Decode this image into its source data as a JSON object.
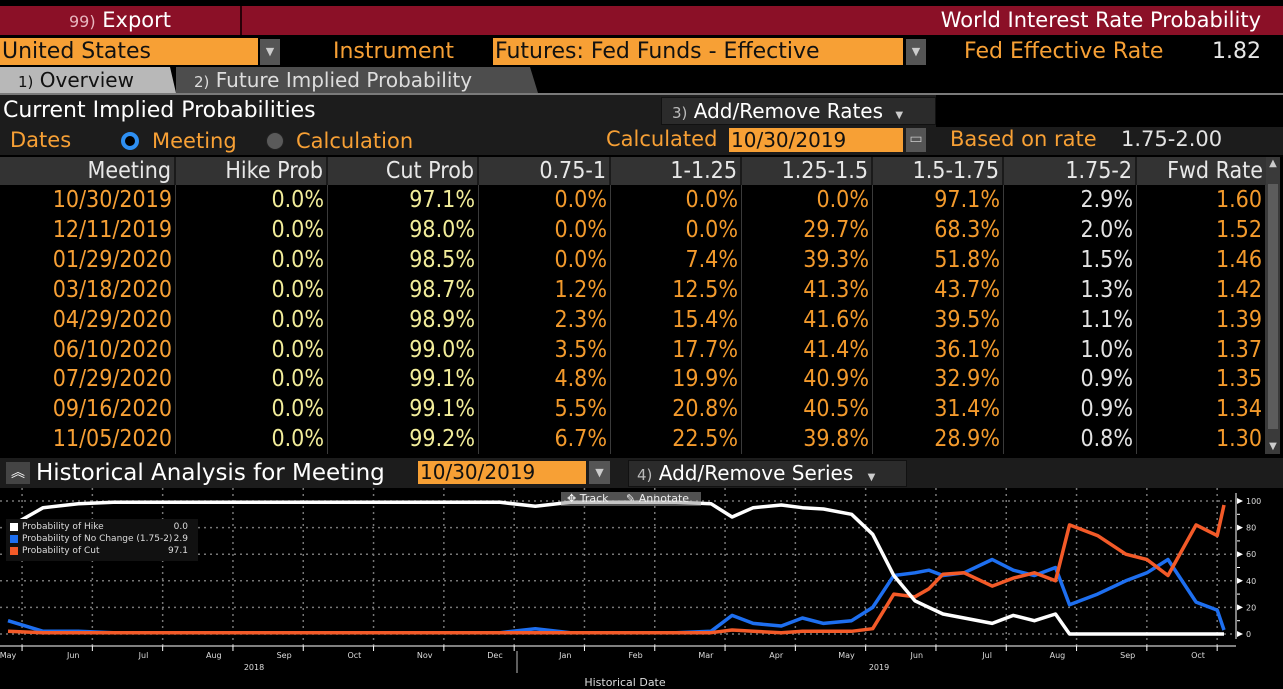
{
  "header": {
    "export_num": "99)",
    "export_label": "Export",
    "app_title": "World Interest Rate Probability"
  },
  "controls": {
    "country": "United States",
    "instrument_label": "Instrument",
    "instrument": "Futures: Fed Funds - Effective",
    "fed_rate_label": "Fed Effective Rate",
    "fed_rate_value": "1.82"
  },
  "tabs": [
    {
      "num": "1)",
      "label": "Overview"
    },
    {
      "num": "2)",
      "label": "Future Implied Probability"
    }
  ],
  "current": {
    "title": "Current Implied Probabilities",
    "add_rates_num": "3)",
    "add_rates_label": "Add/Remove Rates",
    "dates_label": "Dates",
    "radio_meeting": "Meeting",
    "radio_calculation": "Calculation",
    "calculated_label": "Calculated",
    "calculated_date": "10/30/2019",
    "based_on_label": "Based on rate",
    "based_on_value": "1.75-2.00"
  },
  "table": {
    "columns": [
      "Meeting",
      "Hike Prob",
      "Cut Prob",
      "0.75-1",
      "1-1.25",
      "1.25-1.5",
      "1.5-1.75",
      "1.75-2",
      "Fwd Rate"
    ],
    "rows": [
      [
        "10/30/2019",
        "0.0%",
        "97.1%",
        "0.0%",
        "0.0%",
        "0.0%",
        "97.1%",
        "2.9%",
        "1.60"
      ],
      [
        "12/11/2019",
        "0.0%",
        "98.0%",
        "0.0%",
        "0.0%",
        "29.7%",
        "68.3%",
        "2.0%",
        "1.52"
      ],
      [
        "01/29/2020",
        "0.0%",
        "98.5%",
        "0.0%",
        "7.4%",
        "39.3%",
        "51.8%",
        "1.5%",
        "1.46"
      ],
      [
        "03/18/2020",
        "0.0%",
        "98.7%",
        "1.2%",
        "12.5%",
        "41.3%",
        "43.7%",
        "1.3%",
        "1.42"
      ],
      [
        "04/29/2020",
        "0.0%",
        "98.9%",
        "2.3%",
        "15.4%",
        "41.6%",
        "39.5%",
        "1.1%",
        "1.39"
      ],
      [
        "06/10/2020",
        "0.0%",
        "99.0%",
        "3.5%",
        "17.7%",
        "41.4%",
        "36.1%",
        "1.0%",
        "1.37"
      ],
      [
        "07/29/2020",
        "0.0%",
        "99.1%",
        "4.8%",
        "19.9%",
        "40.9%",
        "32.9%",
        "0.9%",
        "1.35"
      ],
      [
        "09/16/2020",
        "0.0%",
        "99.1%",
        "5.5%",
        "20.8%",
        "40.5%",
        "31.4%",
        "0.9%",
        "1.34"
      ],
      [
        "11/05/2020",
        "0.0%",
        "99.2%",
        "6.7%",
        "22.5%",
        "39.8%",
        "28.9%",
        "0.8%",
        "1.30"
      ]
    ]
  },
  "historical": {
    "title": "Historical Analysis for Meeting",
    "meeting_date": "10/30/2019",
    "add_series_num": "4)",
    "add_series_label": "Add/Remove Series",
    "track_label": "Track",
    "annotate_label": "Annotate"
  },
  "chart_data": {
    "type": "line",
    "xlabel": "Historical Date",
    "ylabel": "",
    "ylim": [
      0,
      100
    ],
    "yticks": [
      "100",
      "80",
      "60",
      "40",
      "20",
      "0"
    ],
    "xticks": [
      "May",
      "Jun",
      "Jul",
      "Aug",
      "Sep",
      "Oct",
      "Nov",
      "Dec",
      "Jan",
      "Feb",
      "Mar",
      "Apr",
      "May",
      "Jun",
      "Jul",
      "Aug",
      "Sep",
      "Oct"
    ],
    "year_labels": [
      "2018",
      "2019"
    ],
    "legend": [
      {
        "name": "Probability of Hike",
        "value": "0.0",
        "color": "#ffffff"
      },
      {
        "name": "Probability of No Change (1.75-2)",
        "value": "2.9",
        "color": "#1e6ff0"
      },
      {
        "name": "Probability of Cut",
        "value": "97.1",
        "color": "#f35a28"
      }
    ],
    "x_months_index": [
      0,
      0.5,
      1,
      1.5,
      2,
      2.5,
      3,
      4,
      5,
      6,
      7,
      7.5,
      8,
      9,
      9.5,
      10,
      10.3,
      10.6,
      11,
      11.3,
      11.6,
      12,
      12.3,
      12.6,
      12.9,
      13.1,
      13.3,
      13.6,
      14,
      14.3,
      14.6,
      14.9,
      15.1,
      15.5,
      15.9,
      16.2,
      16.5,
      16.9,
      17.2,
      17.5
    ],
    "series": [
      {
        "name": "Probability of Hike",
        "values": [
          80,
          95,
          98,
          99,
          99,
          99,
          99,
          99,
          99,
          99,
          99,
          96,
          99,
          99,
          99,
          98,
          88,
          95,
          97,
          95,
          94,
          90,
          75,
          44,
          25,
          20,
          15,
          12,
          8,
          14,
          10,
          15,
          0,
          0,
          0,
          0,
          0,
          0,
          0,
          0
        ]
      },
      {
        "name": "Probability of No Change (1.75-2)",
        "values": [
          10,
          2,
          2,
          1,
          1,
          1,
          1,
          1,
          1,
          1,
          1,
          4,
          1,
          1,
          1,
          2,
          14,
          8,
          6,
          12,
          8,
          10,
          20,
          44,
          46,
          48,
          44,
          46,
          56,
          48,
          44,
          50,
          22,
          30,
          40,
          46,
          56,
          24,
          18,
          3
        ]
      },
      {
        "name": "Probability of Cut",
        "values": [
          2,
          1,
          1,
          1,
          1,
          1,
          1,
          1,
          1,
          1,
          1,
          1,
          1,
          1,
          1,
          1,
          3,
          2,
          1,
          2,
          2,
          2,
          4,
          30,
          28,
          34,
          45,
          46,
          36,
          42,
          46,
          40,
          82,
          74,
          60,
          56,
          44,
          82,
          74,
          97
        ]
      }
    ]
  }
}
